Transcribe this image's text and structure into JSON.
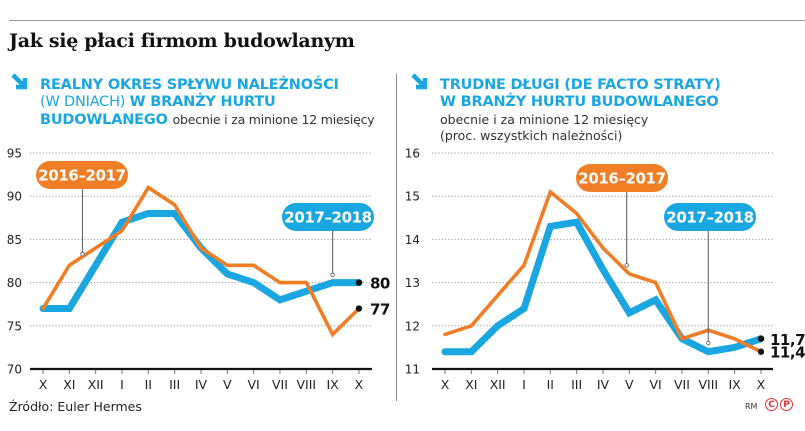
{
  "title": "Jak się płaci firmom budowlanym",
  "source": "Źródło: Euler Hermes",
  "credit": "RM",
  "logo_letters": [
    "C",
    "P"
  ],
  "colors": {
    "blue": "#1aa7e1",
    "orange": "#f07e26",
    "grid": "#9a9a9a",
    "axis": "#111111"
  },
  "panels": {
    "left": {
      "icon": "arrow-down-right-icon",
      "heading_bold_1": "REALNY OKRES SPŁYWU NALEŻNOŚCI",
      "heading_thin": "(W DNIACH) ",
      "heading_bold_2": "W BRANŻY HURTU",
      "heading_bold_3": "BUDOWLANEGO ",
      "heading_sub": "obecnie i za minione 12 miesięcy"
    },
    "right": {
      "icon": "arrow-down-right-icon",
      "heading_bold_1": "TRUDNE DŁUGI (DE FACTO STRATY)",
      "heading_bold_2": "W BRANŻY HURTU BUDOWLANEGO",
      "heading_sub_1": "obecnie i za minione 12 miesięcy",
      "heading_sub_2": "(proc. wszystkich należności)"
    }
  },
  "chart_data": [
    {
      "type": "line",
      "title": "Realny okres spływu należności (w dniach) w branży hurtu budowlanego",
      "xlabel": "",
      "ylabel": "",
      "categories": [
        "X",
        "XI",
        "XII",
        "I",
        "II",
        "III",
        "IV",
        "V",
        "VI",
        "VII",
        "VIII",
        "IX",
        "X"
      ],
      "ylim": [
        70,
        95
      ],
      "yticks": [
        70,
        75,
        80,
        85,
        90,
        95
      ],
      "ytick_labels": [
        "70",
        "75",
        "80",
        "85",
        "90",
        "95"
      ],
      "grid": true,
      "series": [
        {
          "name": "2016–2017",
          "color": "#f07e26",
          "values": [
            77,
            82,
            84,
            86,
            91,
            89,
            84,
            82,
            82,
            80,
            80,
            74,
            77
          ],
          "end_label": "77"
        },
        {
          "name": "2017–2018",
          "color": "#1aa7e1",
          "values": [
            77,
            77,
            82,
            87,
            88,
            88,
            84,
            81,
            80,
            78,
            79,
            80,
            80
          ],
          "end_label": "80"
        }
      ],
      "legend_callouts": [
        {
          "series": "2016–2017",
          "anchor_index": 1.5,
          "anchor_value": 83.3
        },
        {
          "series": "2017–2018",
          "anchor_index": 11,
          "anchor_value": 80.9
        }
      ]
    },
    {
      "type": "line",
      "title": "Trudne długi (de facto straty) w branży hurtu budowlanego",
      "xlabel": "",
      "ylabel": "",
      "categories": [
        "X",
        "XI",
        "XII",
        "I",
        "II",
        "III",
        "IV",
        "V",
        "VI",
        "VII",
        "VIII",
        "IX",
        "X"
      ],
      "ylim": [
        11,
        16
      ],
      "yticks": [
        11,
        12,
        13,
        14,
        15,
        16
      ],
      "ytick_labels": [
        "11",
        "12",
        "13",
        "14",
        "15",
        "16"
      ],
      "grid": true,
      "series": [
        {
          "name": "2016–2017",
          "color": "#f07e26",
          "values": [
            11.8,
            12.0,
            12.7,
            13.4,
            15.1,
            14.6,
            13.8,
            13.2,
            13.0,
            11.7,
            11.9,
            11.7,
            11.4
          ],
          "end_label": "11,4"
        },
        {
          "name": "2017–2018",
          "color": "#1aa7e1",
          "values": [
            11.4,
            11.4,
            12.0,
            12.4,
            14.3,
            14.4,
            13.3,
            12.3,
            12.6,
            11.7,
            11.4,
            11.5,
            11.7
          ],
          "end_label": "11,7"
        }
      ],
      "legend_callouts": [
        {
          "series": "2016–2017",
          "anchor_index": 6.9,
          "anchor_value": 13.4
        },
        {
          "series": "2017–2018",
          "anchor_index": 10,
          "anchor_value": 11.6
        }
      ]
    }
  ]
}
